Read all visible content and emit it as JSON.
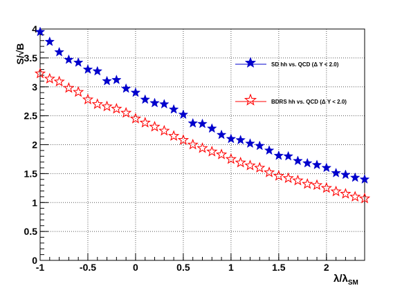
{
  "chart_data": {
    "type": "scatter",
    "xlabel": "λ/λ_SM",
    "xlabel_main": "λ/λ",
    "xlabel_sub": "SM",
    "ylabel": "S/√B",
    "xlim": [
      -1.0,
      2.4
    ],
    "ylim": [
      0,
      4
    ],
    "grid": true,
    "legend_position": "top-right",
    "x_ticks": [
      {
        "value": -1,
        "label": "-1"
      },
      {
        "value": -0.5,
        "label": "-0.5"
      },
      {
        "value": 0,
        "label": "0"
      },
      {
        "value": 0.5,
        "label": "0.5"
      },
      {
        "value": 1,
        "label": "1"
      },
      {
        "value": 1.5,
        "label": "1.5"
      },
      {
        "value": 2,
        "label": "2"
      }
    ],
    "y_ticks": [
      {
        "value": 0,
        "label": "0"
      },
      {
        "value": 0.5,
        "label": "0.5"
      },
      {
        "value": 1,
        "label": "1"
      },
      {
        "value": 1.5,
        "label": "1.5"
      },
      {
        "value": 2,
        "label": "2"
      },
      {
        "value": 2.5,
        "label": "2.5"
      },
      {
        "value": 3,
        "label": "3"
      },
      {
        "value": 3.5,
        "label": "3.5"
      },
      {
        "value": 4,
        "label": "4"
      }
    ],
    "x": [
      -1.0,
      -0.9,
      -0.8,
      -0.7,
      -0.6,
      -0.5,
      -0.4,
      -0.3,
      -0.2,
      -0.1,
      0.0,
      0.1,
      0.2,
      0.3,
      0.4,
      0.5,
      0.6,
      0.7,
      0.8,
      0.9,
      1.0,
      1.1,
      1.2,
      1.3,
      1.4,
      1.5,
      1.6,
      1.7,
      1.8,
      1.9,
      2.0,
      2.1,
      2.2,
      2.3,
      2.4
    ],
    "series": [
      {
        "name": "SD hh vs. QCD (Δ Y < 2.0)",
        "color": "#0000cc",
        "marker": "filled-star",
        "values": [
          3.95,
          3.78,
          3.6,
          3.47,
          3.42,
          3.3,
          3.27,
          3.1,
          3.12,
          2.97,
          2.9,
          2.78,
          2.72,
          2.7,
          2.61,
          2.52,
          2.37,
          2.36,
          2.28,
          2.17,
          2.1,
          2.08,
          2.02,
          1.98,
          1.9,
          1.81,
          1.8,
          1.72,
          1.68,
          1.65,
          1.6,
          1.51,
          1.48,
          1.43,
          1.4
        ]
      },
      {
        "name": "BDRS hh vs. QCD (Δ Y < 2.0)",
        "color": "#ff0000",
        "marker": "open-star",
        "values": [
          3.23,
          3.14,
          3.09,
          2.98,
          2.91,
          2.78,
          2.7,
          2.66,
          2.62,
          2.55,
          2.45,
          2.38,
          2.31,
          2.24,
          2.15,
          2.08,
          2.0,
          1.94,
          1.88,
          1.83,
          1.75,
          1.69,
          1.64,
          1.6,
          1.52,
          1.46,
          1.42,
          1.38,
          1.32,
          1.3,
          1.25,
          1.19,
          1.15,
          1.1,
          1.07
        ]
      }
    ]
  }
}
